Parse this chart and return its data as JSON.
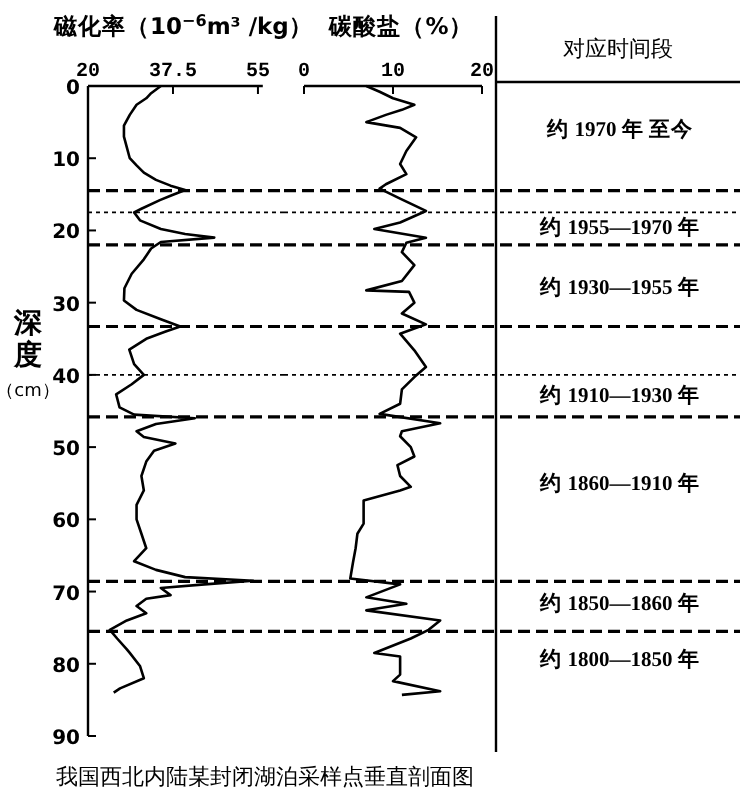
{
  "chart_data": [
    {
      "type": "line",
      "title": "磁化率（10$^{−6}$m³ /kg）",
      "ylabel": "深度（cm）",
      "xlim": [
        20,
        56
      ],
      "xticks": [
        20,
        37.5,
        55
      ],
      "ylim": [
        90,
        0
      ],
      "yticks": [
        0,
        10,
        20,
        30,
        40,
        50,
        60,
        70,
        80,
        90
      ],
      "tick_labels": "xy",
      "grid": false,
      "marker": "none",
      "series": [
        {
          "color": "#000000",
          "x": [
            35,
            33,
            32,
            30,
            28.6,
            27.4,
            27.4,
            28,
            28.6,
            30,
            31.5,
            34,
            37,
            40,
            37,
            34.8,
            31,
            29.5,
            30.7,
            35,
            40,
            46,
            35,
            33,
            31.5,
            29,
            27.5,
            27.4,
            30,
            35,
            39,
            36,
            32,
            28.5,
            29.5,
            31.5,
            29,
            25.8,
            26.5,
            29.5,
            42,
            34,
            30,
            31.5,
            38,
            33.6,
            32,
            31,
            31.5,
            30,
            30,
            31,
            32,
            29.5,
            34,
            40,
            54,
            44,
            35,
            37,
            32,
            30,
            32,
            28,
            24.5,
            26,
            28,
            28.6,
            30.7,
            31.5,
            26.6,
            25.3
          ],
          "values": [
            0,
            1,
            1.7,
            2.6,
            4,
            5.5,
            7,
            8.5,
            10,
            11,
            12,
            13,
            13.8,
            14.4,
            15.2,
            15.8,
            17,
            17.5,
            18.6,
            19.8,
            20.5,
            21,
            21.6,
            22.5,
            24,
            26,
            28,
            29.7,
            31,
            32.3,
            33.3,
            34,
            35,
            36.5,
            38.5,
            40,
            41.3,
            42.7,
            44.5,
            45.5,
            46,
            46.8,
            47.8,
            48.6,
            49.5,
            50.5,
            52,
            54,
            56,
            58,
            60,
            62,
            64,
            65.8,
            67,
            68,
            68.5,
            69,
            69.5,
            70.5,
            71,
            72,
            73,
            74,
            75.3,
            76.5,
            78,
            78.5,
            80.3,
            82,
            83.4,
            84
          ]
        }
      ],
      "ref_lines": [
        {
          "axis": "y",
          "value": 14.5,
          "line_style": "dashed"
        },
        {
          "axis": "y",
          "value": 17.5,
          "line_style": "dotted"
        },
        {
          "axis": "y",
          "value": 22,
          "line_style": "dashed"
        },
        {
          "axis": "y",
          "value": 33.3,
          "line_style": "dashed"
        },
        {
          "axis": "y",
          "value": 40,
          "line_style": "dotted"
        },
        {
          "axis": "y",
          "value": 45.8,
          "line_style": "dashed"
        },
        {
          "axis": "y",
          "value": 68.6,
          "line_style": "dashed"
        },
        {
          "axis": "y",
          "value": 75.5,
          "line_style": "dashed"
        }
      ],
      "annotations": [
        "我国西北内陆某封闭湖泊采样点垂直剖面图"
      ]
    },
    {
      "type": "line",
      "title": "碳酸盐（%）",
      "xlim": [
        0,
        20
      ],
      "xticks": [
        0,
        10,
        20
      ],
      "ylim": [
        90,
        0
      ],
      "tick_labels": "x",
      "grid": false,
      "marker": "none",
      "series": [
        {
          "color": "#000000",
          "x": [
            7,
            8.5,
            10,
            12.4,
            11,
            9.2,
            7,
            10.8,
            12.6,
            11.5,
            10.8,
            11.5,
            9.2,
            8.5,
            10.8,
            13.7,
            10.8,
            7.9,
            13.7,
            11.5,
            11,
            12.4,
            11,
            7,
            11.8,
            12.4,
            11,
            13.7,
            10.8,
            12.4,
            13.7,
            12.4,
            11,
            10.8,
            8.5,
            15.3,
            11,
            10.8,
            12,
            12.4,
            10.5,
            10.8,
            12,
            10.8,
            6.7,
            6.7,
            6,
            5.8,
            5.5,
            5.2,
            10.8,
            7,
            11.5,
            7,
            15.3,
            14,
            12,
            7.9,
            10.8,
            10.8,
            10,
            15.3,
            11
          ],
          "values": [
            0,
            0.8,
            1.7,
            2.6,
            3.3,
            4,
            5,
            5.8,
            7.1,
            9,
            10.8,
            12.2,
            13.6,
            14.2,
            15.6,
            17.3,
            18.9,
            19.8,
            21,
            21.7,
            23,
            24.8,
            27,
            28.3,
            28.5,
            30,
            31.5,
            33,
            34.3,
            36.6,
            38.9,
            40.3,
            42,
            44,
            45.4,
            46.7,
            47.8,
            48.5,
            50,
            51.3,
            52.5,
            54,
            55.5,
            56,
            57.4,
            60.6,
            62,
            64,
            66,
            68.2,
            69,
            70.8,
            71.7,
            72.6,
            74,
            75.3,
            76.5,
            78.5,
            79,
            81.5,
            82.4,
            83.8,
            84.3
          ]
        }
      ],
      "ref_lines": [
        {
          "axis": "y",
          "value": 14.5,
          "line_style": "dashed"
        },
        {
          "axis": "y",
          "value": 17.5,
          "line_style": "dotted"
        },
        {
          "axis": "y",
          "value": 22,
          "line_style": "dashed"
        },
        {
          "axis": "y",
          "value": 33.3,
          "line_style": "dashed"
        },
        {
          "axis": "y",
          "value": 40,
          "line_style": "dotted"
        },
        {
          "axis": "y",
          "value": 45.8,
          "line_style": "dashed"
        },
        {
          "axis": "y",
          "value": 68.6,
          "line_style": "dashed"
        },
        {
          "axis": "y",
          "value": 75.5,
          "line_style": "dashed"
        }
      ]
    },
    {
      "type": "other",
      "title": "对应时间段",
      "annotations": [
        "约 1970 年 至今",
        "约 1955—1970 年",
        "约 1930—1955 年",
        "约 1910—1930 年",
        "约 1860—1910 年",
        "约 1850—1860 年",
        "约 1800—1850 年"
      ]
    }
  ]
}
